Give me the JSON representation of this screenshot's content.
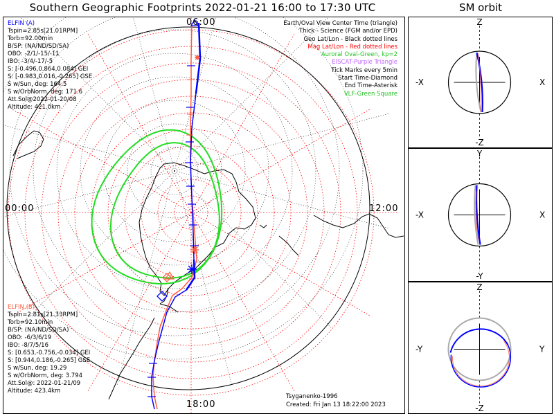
{
  "title": "Southern Geographic Footprints 2022-01-21 16:00 to 17:30 UTC",
  "orbit_title": "SM orbit",
  "hour_labels": {
    "top": "06:00",
    "left": "00:00",
    "right": "12:00",
    "bottom": "18:00"
  },
  "elfin_a": {
    "name": "ELFIN (A)",
    "color": "#0000ff",
    "lines": [
      "Tspin=2.85s[21.01RPM]",
      "Torb=92.00min",
      "B/SP: (NA/ND/SD/SA)",
      "OBO: -2/1/-15/-11",
      "IBO: -3/4/-17/-5",
      "S: [-0.496,0.864,0.084] GEI",
      "S: [-0.983,0.016,-0.265] GSE",
      "S w/Sun, deg: 164.5",
      "S w/OrbNorm, deg: 171.6",
      "Att.Sol@2022-01-20/08",
      "Altitude: 421.0km"
    ]
  },
  "elfin_b": {
    "name": "ELFIN (B)",
    "color": "#ff5a3c",
    "lines": [
      "Tspin=2.81s[21.33RPM]",
      "Torb=92.10min",
      "B/SP: (NA/ND/SD/SA)",
      "OBO: -6/3/6/19",
      "IBO: -8/7/5/16",
      "S: [0.653,-0.756,-0.034] GEI",
      "S: [0.944,0.186,-0.265] GSE",
      "S w/Sun, deg: 19.29",
      "S w/OrbNorm, deg: 3.794",
      "Att.Sol@: 2022-01-21/09",
      "Altitude: 423.4km"
    ]
  },
  "legend": [
    {
      "text": "Earth/Oval View Center Time (triangle)",
      "color": "#000000"
    },
    {
      "text": "Thick - Science (FGM and/or EPD)",
      "color": "#000000"
    },
    {
      "text": "Geo Lat/Lon - Black dotted lines",
      "color": "#000000"
    },
    {
      "text": "Mag Lat/Lon - Red dotted lines",
      "color": "#ff0000"
    },
    {
      "text": "Auroral Oval-Green, kp=2",
      "color": "#22c022"
    },
    {
      "text": "EISCAT-Purple Triangle",
      "color": "#c060ff"
    },
    {
      "text": "Tick Marks every 5min",
      "color": "#000000"
    },
    {
      "text": "Start Time-Diamond",
      "color": "#000000"
    },
    {
      "text": "End Time-Asterisk",
      "color": "#000000"
    },
    {
      "text": "VLF-Green Square",
      "color": "#22c022"
    }
  ],
  "model": "Tsyganenko-1996",
  "created": "Created: Fri Jan 13 18:22:00 2023",
  "orbit_panels": [
    {
      "top": "Z",
      "bottom": "-Z",
      "left": "-X",
      "right": "X"
    },
    {
      "top": "Y",
      "bottom": "-Y",
      "left": "-X",
      "right": "X"
    },
    {
      "top": "Z",
      "bottom": "-Z",
      "left": "-Y",
      "right": "Y"
    }
  ],
  "colors": {
    "geo_grid": "#000000",
    "mag_grid": "#ff0000",
    "aurora": "#22dd22",
    "elfin_a": "#0000ff",
    "elfin_b": "#ff5a3c"
  }
}
